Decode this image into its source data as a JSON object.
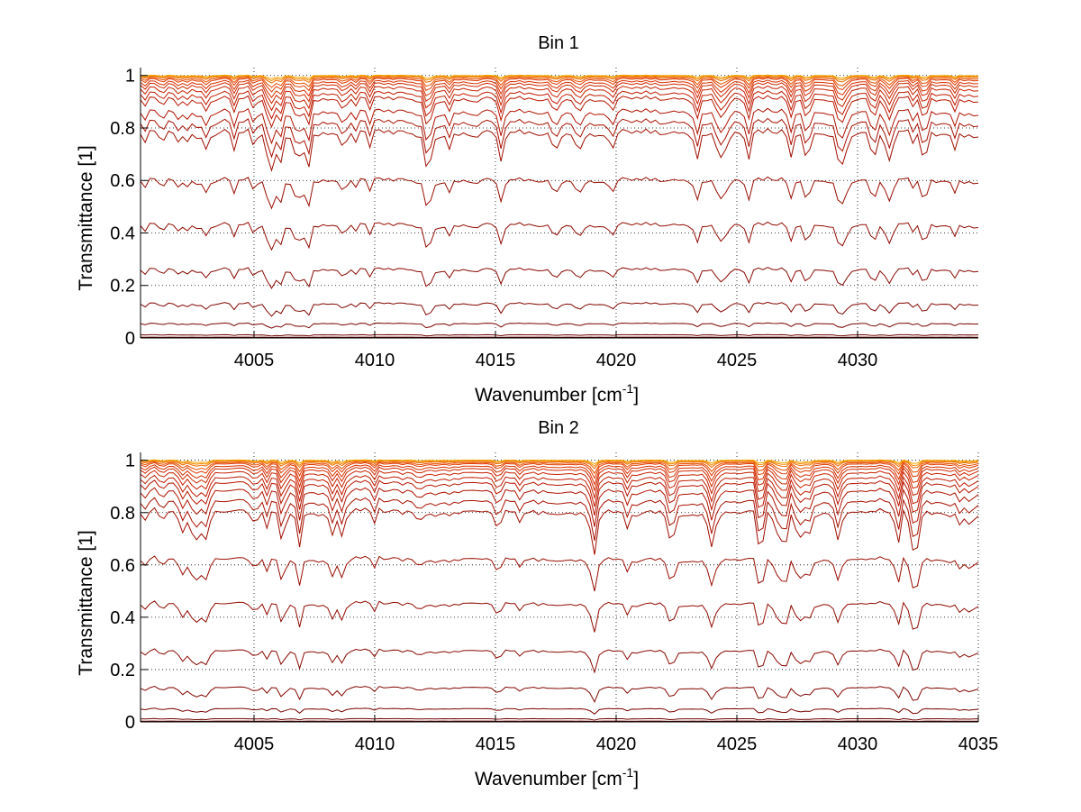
{
  "chart_data": [
    {
      "type": "line",
      "title": "Bin 1",
      "xlabel": "Wavenumber [cm",
      "xlabel_sup": "-1",
      "xlabel_end": "]",
      "ylabel": "Transmittance [1]",
      "xlim": [
        4000.3,
        4035
      ],
      "ylim": [
        0,
        1.03
      ],
      "xticks": [
        4005,
        4010,
        4015,
        4020,
        4025,
        4030
      ],
      "xtick_labels": [
        "4005",
        "4010",
        "4015",
        "4020",
        "4025",
        "4030"
      ],
      "yticks": [
        0,
        0.2,
        0.4,
        0.6,
        0.8,
        1
      ],
      "ytick_labels": [
        "0",
        "0.2",
        "0.4",
        "0.6",
        "0.8",
        "1"
      ],
      "grid": true,
      "grid_style": "dotted",
      "n_points": 180,
      "x_start": 4000.3,
      "x_end": 4035,
      "series": [
        {
          "baseline": 1.0,
          "depth": 0.01,
          "color": "#f5a800"
        },
        {
          "baseline": 0.998,
          "depth": 0.015,
          "color": "#f08a00"
        },
        {
          "baseline": 0.995,
          "depth": 0.02,
          "color": "#ee6a00"
        },
        {
          "baseline": 0.99,
          "depth": 0.03,
          "color": "#e84e00"
        },
        {
          "baseline": 0.985,
          "depth": 0.04,
          "color": "#e03a00"
        },
        {
          "baseline": 0.975,
          "depth": 0.05,
          "color": "#d83000"
        },
        {
          "baseline": 0.965,
          "depth": 0.06,
          "color": "#d02800"
        },
        {
          "baseline": 0.95,
          "depth": 0.07,
          "color": "#c82000"
        },
        {
          "baseline": 0.93,
          "depth": 0.08,
          "color": "#c01a00"
        },
        {
          "baseline": 0.91,
          "depth": 0.09,
          "color": "#b81500"
        },
        {
          "baseline": 0.86,
          "depth": 0.1,
          "color": "#b01200"
        },
        {
          "baseline": 0.82,
          "depth": 0.11,
          "color": "#a81000"
        },
        {
          "baseline": 0.78,
          "depth": 0.12,
          "color": "#a00e00"
        },
        {
          "baseline": 0.6,
          "depth": 0.09,
          "color": "#980c00"
        },
        {
          "baseline": 0.43,
          "depth": 0.08,
          "color": "#900a00"
        },
        {
          "baseline": 0.26,
          "depth": 0.06,
          "color": "#880800"
        },
        {
          "baseline": 0.13,
          "depth": 0.04,
          "color": "#800600"
        },
        {
          "baseline": 0.055,
          "depth": 0.015,
          "color": "#780500"
        },
        {
          "baseline": 0.012,
          "depth": 0.004,
          "color": "#700400"
        },
        {
          "baseline": 0.003,
          "depth": 0.001,
          "color": "#600300"
        }
      ]
    },
    {
      "type": "line",
      "title": "Bin 2",
      "xlabel": "Wavenumber [cm",
      "xlabel_sup": "-1",
      "xlabel_end": "]",
      "ylabel": "Transmittance [1]",
      "xlim": [
        4000.3,
        4035
      ],
      "ylim": [
        0,
        1.03
      ],
      "xticks": [
        4005,
        4010,
        4015,
        4020,
        4025,
        4030,
        4035
      ],
      "xtick_labels": [
        "4005",
        "4010",
        "4015",
        "4020",
        "4025",
        "4030",
        "4035"
      ],
      "yticks": [
        0,
        0.2,
        0.4,
        0.6,
        0.8,
        1
      ],
      "ytick_labels": [
        "0",
        "0.2",
        "0.4",
        "0.6",
        "0.8",
        "1"
      ],
      "grid": true,
      "grid_style": "dotted",
      "n_points": 180,
      "x_start": 4000.3,
      "x_end": 4035,
      "series": [
        {
          "baseline": 1.0,
          "depth": 0.01,
          "color": "#f5a800"
        },
        {
          "baseline": 0.998,
          "depth": 0.015,
          "color": "#f08a00"
        },
        {
          "baseline": 0.995,
          "depth": 0.02,
          "color": "#ee6a00"
        },
        {
          "baseline": 0.99,
          "depth": 0.03,
          "color": "#e84e00"
        },
        {
          "baseline": 0.985,
          "depth": 0.04,
          "color": "#e03a00"
        },
        {
          "baseline": 0.975,
          "depth": 0.05,
          "color": "#d83000"
        },
        {
          "baseline": 0.965,
          "depth": 0.06,
          "color": "#d02800"
        },
        {
          "baseline": 0.95,
          "depth": 0.07,
          "color": "#c82000"
        },
        {
          "baseline": 0.93,
          "depth": 0.08,
          "color": "#c01a00"
        },
        {
          "baseline": 0.91,
          "depth": 0.09,
          "color": "#b81500"
        },
        {
          "baseline": 0.88,
          "depth": 0.1,
          "color": "#b01200"
        },
        {
          "baseline": 0.84,
          "depth": 0.11,
          "color": "#a81000"
        },
        {
          "baseline": 0.8,
          "depth": 0.12,
          "color": "#a00e00"
        },
        {
          "baseline": 0.62,
          "depth": 0.09,
          "color": "#980c00"
        },
        {
          "baseline": 0.45,
          "depth": 0.08,
          "color": "#900a00"
        },
        {
          "baseline": 0.27,
          "depth": 0.06,
          "color": "#880800"
        },
        {
          "baseline": 0.13,
          "depth": 0.04,
          "color": "#800600"
        },
        {
          "baseline": 0.05,
          "depth": 0.015,
          "color": "#780500"
        },
        {
          "baseline": 0.012,
          "depth": 0.004,
          "color": "#700400"
        },
        {
          "baseline": 0.003,
          "depth": 0.001,
          "color": "#600300"
        }
      ]
    }
  ]
}
